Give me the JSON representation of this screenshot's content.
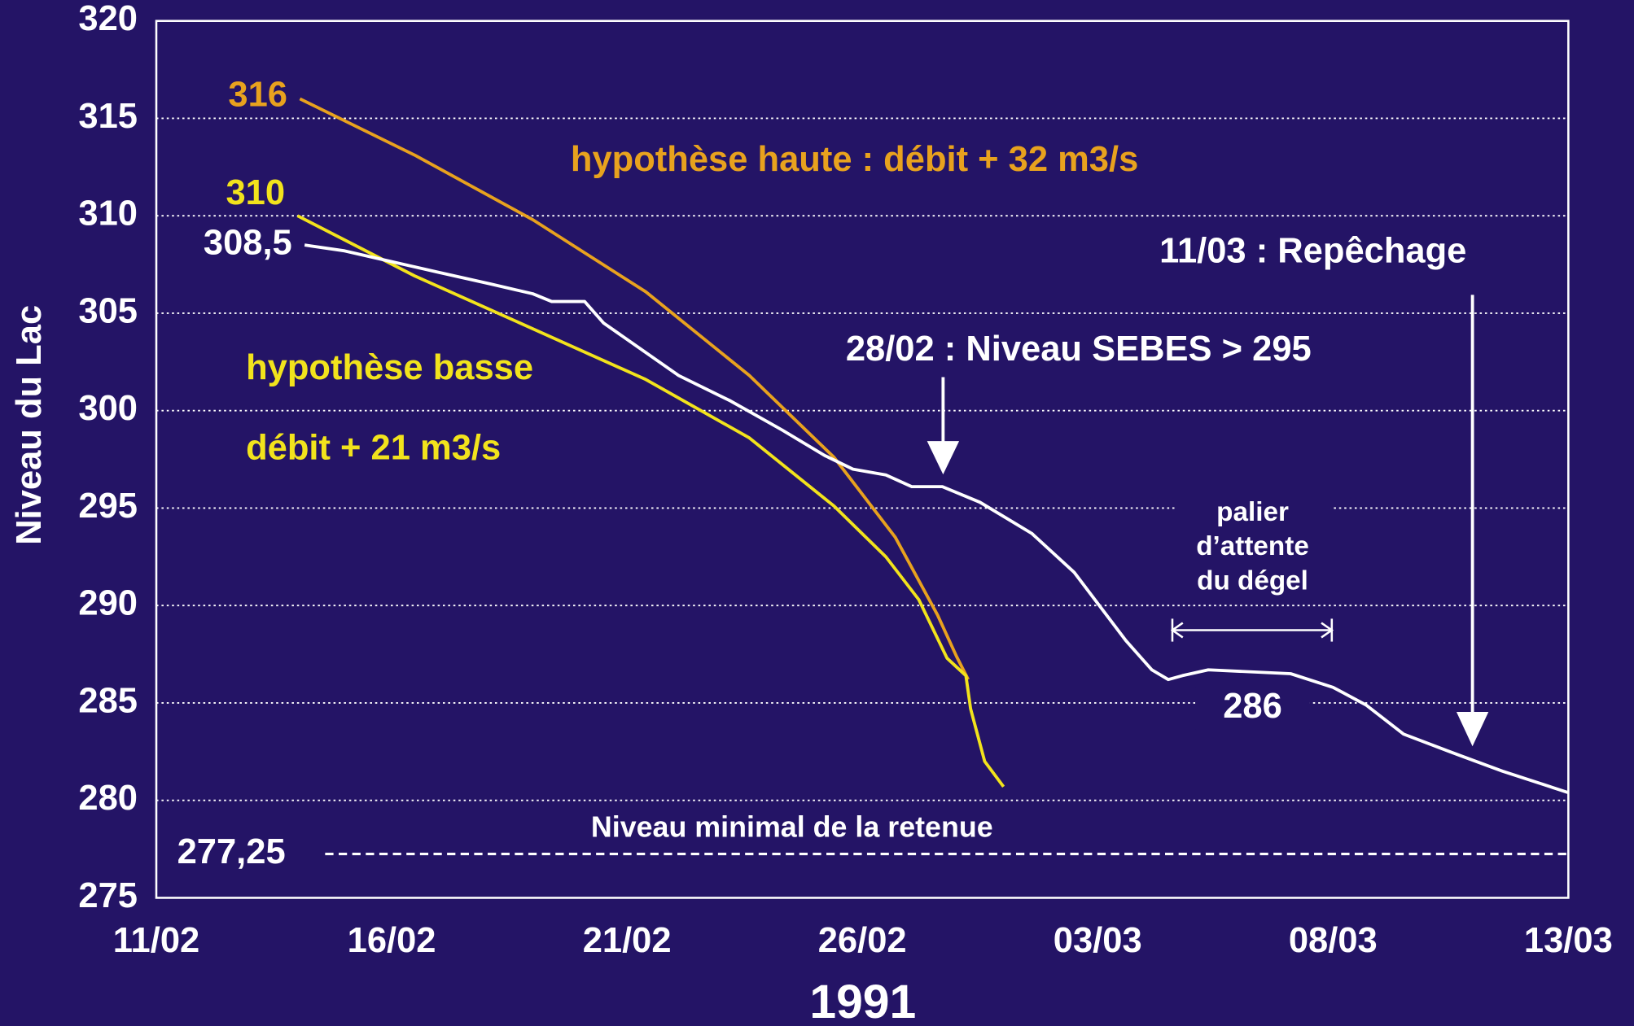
{
  "chart_data": {
    "type": "line",
    "xlabel": "1991",
    "ylabel": "Niveau du Lac",
    "xlim": [
      0,
      30
    ],
    "xticks": [
      {
        "value": 0,
        "label": "11/02"
      },
      {
        "value": 5,
        "label": "16/02"
      },
      {
        "value": 10,
        "label": "21/02"
      },
      {
        "value": 15,
        "label": "26/02"
      },
      {
        "value": 20,
        "label": "03/03"
      },
      {
        "value": 25,
        "label": "08/03"
      },
      {
        "value": 30,
        "label": "13/03"
      }
    ],
    "ylim": [
      275,
      320
    ],
    "yticks": [
      275,
      280,
      285,
      290,
      295,
      300,
      305,
      310,
      315,
      320
    ],
    "grid": true,
    "series": [
      {
        "name": "hypothèse haute : débit + 32 m3/s",
        "color": "#e8a21e",
        "x": [
          3.05,
          5.5,
          8.0,
          10.4,
          12.6,
          14.4,
          15.7,
          16.6,
          17.0,
          17.25
        ],
        "values": [
          316,
          313.1,
          309.8,
          306.1,
          301.8,
          297.6,
          293.5,
          289.5,
          287.4,
          286.2
        ]
      },
      {
        "name": "hypothèse basse",
        "color": "#f2e31c",
        "x": [
          3.0,
          5.5,
          8.0,
          10.4,
          12.6,
          14.4,
          15.5,
          16.2,
          16.8,
          17.2,
          17.3,
          17.6,
          18.0
        ],
        "values": [
          310,
          306.9,
          304.2,
          301.6,
          298.6,
          295.1,
          292.5,
          290.3,
          287.3,
          286.4,
          284.7,
          282.0,
          280.7
        ]
      },
      {
        "name": "débit + 21 m3/s",
        "color": "#f2e31c"
      },
      {
        "color": "#ffffff",
        "x": [
          3.15,
          4.0,
          4.9,
          6.0,
          7.1,
          8.0,
          8.4,
          9.1,
          9.5,
          11.1,
          12.2,
          13.3,
          14.2,
          14.8,
          15.5,
          16.05,
          16.7,
          17.5,
          18.6,
          19.5,
          20.6,
          21.15,
          21.5,
          21.8,
          22.35,
          24.1,
          25.0,
          25.7,
          26.5,
          27.7,
          28.6,
          30
        ],
        "values": [
          308.5,
          308.2,
          307.7,
          307.1,
          306.5,
          306.0,
          305.6,
          305.6,
          304.5,
          301.8,
          300.5,
          299.0,
          297.7,
          297.0,
          296.7,
          296.1,
          296.1,
          295.3,
          293.7,
          291.7,
          288.2,
          286.7,
          286.2,
          286.4,
          286.7,
          286.5,
          285.8,
          284.9,
          283.4,
          282.3,
          281.5,
          280.4
        ],
        "value_labels": [
          "308,5",
          null,
          null,
          null,
          null,
          null,
          null,
          null,
          null,
          null,
          null,
          null,
          null,
          null,
          null,
          null,
          null,
          null,
          null,
          null,
          null,
          null,
          null,
          null,
          null,
          null,
          null,
          null,
          null,
          null,
          null,
          null
        ]
      }
    ],
    "reference_line": {
      "value": 277.25,
      "label": "277,25",
      "text": "Niveau minimal de la retenue"
    },
    "annotations": [
      "28/02 : Niveau SEBES > 295",
      "11/03 : Repêchage",
      "palier",
      "d’attente",
      "du dégel",
      "286"
    ]
  }
}
